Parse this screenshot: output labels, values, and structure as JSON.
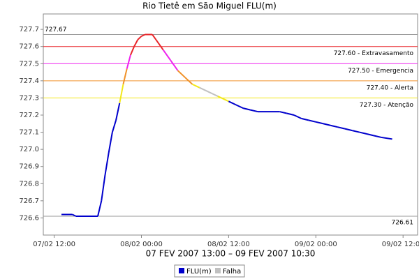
{
  "chart_data": {
    "type": "line",
    "title": "Rio Tietê em São Miguel FLU(m)",
    "subtitle": "07 FEV 2007 13:00 – 09 FEV 2007 10:30",
    "x": [
      "07/02 13:00",
      "07/02 14:30",
      "07/02 15:00",
      "07/02 18:00",
      "07/02 18:30",
      "07/02 19:00",
      "07/02 19:30",
      "07/02 20:00",
      "07/02 20:30",
      "07/02 21:00",
      "07/02 21:30",
      "07/02 22:00",
      "07/02 22:30",
      "07/02 23:00",
      "07/02 23:30",
      "08/02 00:00",
      "08/02 00:30",
      "08/02 01:30",
      "08/02 02:00",
      "08/02 03:00",
      "08/02 04:00",
      "08/02 05:00",
      "08/02 06:00",
      "08/02 07:00",
      "08/02 08:00",
      "08/02 09:00",
      "08/02 10:00",
      "08/02 10:30",
      "08/02 12:00",
      "08/02 13:00",
      "08/02 14:00",
      "08/02 15:00",
      "08/02 16:00",
      "08/02 19:00",
      "08/02 20:00",
      "08/02 21:00",
      "08/02 22:00",
      "08/02 23:00",
      "09/02 00:00",
      "09/02 01:00",
      "09/02 02:00",
      "09/02 03:00",
      "09/02 04:00",
      "09/02 05:00",
      "09/02 06:00",
      "09/02 07:00",
      "09/02 08:00",
      "09/02 09:00",
      "09/02 10:30"
    ],
    "series": [
      {
        "name": "FLU(m)",
        "color": "#0000cc",
        "values": [
          726.62,
          726.62,
          726.61,
          726.61,
          726.7,
          726.85,
          726.98,
          727.1,
          727.17,
          727.27,
          727.38,
          727.47,
          727.55,
          727.6,
          727.64,
          727.66,
          727.67,
          727.67,
          727.64,
          727.58,
          727.52,
          727.46,
          727.42,
          727.38,
          727.36,
          null,
          null,
          727.31,
          727.28,
          727.26,
          727.24,
          727.23,
          727.22,
          727.22,
          727.21,
          727.2,
          727.18,
          727.17,
          727.16,
          727.15,
          727.14,
          727.13,
          727.12,
          727.11,
          727.1,
          727.09,
          727.08,
          727.07,
          727.06
        ]
      },
      {
        "name": "Falha",
        "color": "#c0c0c0",
        "values": [
          null,
          null,
          null,
          null,
          null,
          null,
          null,
          null,
          null,
          null,
          null,
          null,
          null,
          null,
          null,
          null,
          null,
          null,
          null,
          null,
          null,
          null,
          null,
          null,
          727.36,
          727.34,
          727.32,
          727.31,
          null,
          null,
          null,
          null,
          null,
          null,
          null,
          null,
          null,
          null,
          null,
          null,
          null,
          null,
          null,
          null,
          null,
          null,
          null,
          null,
          null
        ]
      }
    ],
    "thresholds": [
      {
        "value": 727.6,
        "label": "727.60 - Extravasamento",
        "color": "#e8262a"
      },
      {
        "value": 727.5,
        "label": "727.50 - Emergencia",
        "color": "#ee22ee"
      },
      {
        "value": 727.4,
        "label": "727.40 - Alerta",
        "color": "#f0922a"
      },
      {
        "value": 727.3,
        "label": "727.30 - Atenção",
        "color": "#f2e81a"
      }
    ],
    "extremes": [
      {
        "value": 727.67,
        "label": "727.67",
        "color": "#999999"
      },
      {
        "value": 726.61,
        "label": "726.61",
        "color": "#999999"
      }
    ],
    "xlim": [
      "07/02 10:30",
      "09/02 14:00"
    ],
    "xticks": [
      "07/02 12:00",
      "08/02 00:00",
      "08/02 12:00",
      "09/02 00:00",
      "09/02 12:00"
    ],
    "ylim": [
      726.5,
      727.79
    ],
    "yticks": [
      726.6,
      726.7,
      726.8,
      726.9,
      {
        "value": 727,
        "label": "727.0"
      },
      727.1,
      727.2,
      727.3,
      727.4,
      727.5,
      727.6,
      727.7
    ]
  }
}
